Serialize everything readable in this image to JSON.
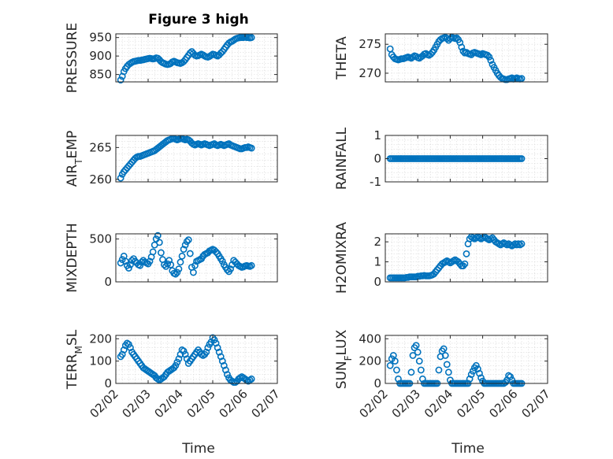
{
  "figure": {
    "title": "Figure 3 high",
    "xlabel": "Time",
    "date_ticks": [
      "02/02",
      "02/03",
      "02/04",
      "02/05",
      "02/06",
      "02/07"
    ]
  },
  "colors": {
    "marker": "#0072bd",
    "axis": "#262626"
  },
  "chart_data": [
    {
      "type": "scatter",
      "name": "pressure",
      "ylabel": "PRESSURE",
      "ylim": [
        830,
        960
      ],
      "yticks": [
        850,
        900,
        950
      ],
      "x": [
        2.15,
        2.2,
        2.25,
        2.3,
        2.35,
        2.4,
        2.45,
        2.5,
        2.55,
        2.6,
        2.65,
        2.7,
        2.75,
        2.8,
        2.85,
        2.9,
        2.95,
        3.0,
        3.05,
        3.1,
        3.15,
        3.2,
        3.25,
        3.3,
        3.35,
        3.4,
        3.45,
        3.5,
        3.55,
        3.6,
        3.65,
        3.7,
        3.75,
        3.8,
        3.85,
        3.9,
        3.95,
        4.0,
        4.05,
        4.1,
        4.15,
        4.2,
        4.25,
        4.3,
        4.35,
        4.4,
        4.45,
        4.5,
        4.55,
        4.6,
        4.65,
        4.7,
        4.75,
        4.8,
        4.85,
        4.9,
        4.95,
        5.0,
        5.05,
        5.1,
        5.15,
        5.2,
        5.25,
        5.3,
        5.35,
        5.4,
        5.45,
        5.5,
        5.55,
        5.6,
        5.65,
        5.7,
        5.75,
        5.8,
        5.85,
        5.9,
        5.95,
        6.0,
        6.05,
        6.1,
        6.15,
        6.2
      ],
      "y": [
        835,
        845,
        858,
        866,
        872,
        877,
        880,
        883,
        885,
        886,
        887,
        888,
        888,
        889,
        890,
        891,
        892,
        893,
        894,
        893,
        892,
        893,
        895,
        894,
        890,
        885,
        882,
        880,
        878,
        877,
        878,
        880,
        884,
        886,
        884,
        882,
        881,
        880,
        882,
        885,
        890,
        896,
        902,
        908,
        912,
        907,
        902,
        900,
        901,
        903,
        905,
        903,
        900,
        898,
        897,
        899,
        902,
        905,
        904,
        902,
        900,
        903,
        908,
        912,
        918,
        924,
        930,
        935,
        938,
        940,
        943,
        946,
        948,
        949,
        950,
        950,
        950,
        951,
        950,
        950,
        949,
        950
      ]
    },
    {
      "type": "scatter",
      "name": "theta",
      "ylabel": "THETA",
      "ylim": [
        268.5,
        276.8
      ],
      "yticks": [
        270,
        275
      ],
      "x": [
        2.15,
        2.2,
        2.25,
        2.3,
        2.35,
        2.4,
        2.45,
        2.5,
        2.55,
        2.6,
        2.65,
        2.7,
        2.75,
        2.8,
        2.85,
        2.9,
        2.95,
        3.0,
        3.05,
        3.1,
        3.15,
        3.2,
        3.25,
        3.3,
        3.35,
        3.4,
        3.45,
        3.5,
        3.55,
        3.6,
        3.65,
        3.7,
        3.75,
        3.8,
        3.85,
        3.9,
        3.95,
        4.0,
        4.05,
        4.1,
        4.15,
        4.2,
        4.25,
        4.3,
        4.35,
        4.4,
        4.45,
        4.5,
        4.55,
        4.6,
        4.65,
        4.7,
        4.75,
        4.8,
        4.85,
        4.9,
        4.95,
        5.0,
        5.05,
        5.1,
        5.15,
        5.2,
        5.25,
        5.3,
        5.35,
        5.4,
        5.45,
        5.5,
        5.55,
        5.6,
        5.65,
        5.7,
        5.75,
        5.8,
        5.85,
        5.9,
        5.95,
        6.0,
        6.05,
        6.1,
        6.15,
        6.2
      ],
      "y": [
        274.2,
        273.2,
        272.8,
        272.5,
        272.4,
        272.3,
        272.4,
        272.5,
        272.5,
        272.6,
        272.7,
        272.8,
        272.7,
        272.6,
        272.8,
        273.0,
        272.9,
        272.7,
        272.6,
        272.8,
        273.0,
        273.3,
        273.4,
        273.2,
        273.1,
        273.3,
        273.6,
        274.0,
        274.5,
        275.0,
        275.5,
        275.8,
        276.0,
        276.1,
        276.2,
        276.0,
        275.7,
        276.0,
        276.2,
        276.1,
        276.0,
        276.1,
        275.8,
        275.3,
        274.5,
        273.8,
        273.5,
        273.6,
        273.4,
        273.3,
        273.2,
        273.5,
        273.6,
        273.5,
        273.4,
        273.3,
        273.2,
        273.4,
        273.3,
        273.2,
        273.1,
        272.8,
        272.2,
        271.5,
        271.0,
        270.5,
        270.0,
        269.6,
        269.3,
        269.1,
        269.0,
        268.9,
        268.9,
        269.0,
        269.1,
        269.2,
        269.0,
        269.1,
        269.2,
        269.1,
        269.0,
        269.1
      ]
    },
    {
      "type": "scatter",
      "name": "air_temp",
      "ylabel_main": "AIR",
      "ylabel_sub": "T",
      "ylabel_rest": "EMP",
      "ylim": [
        259.6,
        266.9
      ],
      "yticks": [
        260,
        265
      ],
      "x": [
        2.15,
        2.2,
        2.25,
        2.3,
        2.35,
        2.4,
        2.45,
        2.5,
        2.55,
        2.6,
        2.65,
        2.7,
        2.75,
        2.8,
        2.85,
        2.9,
        2.95,
        3.0,
        3.05,
        3.1,
        3.15,
        3.2,
        3.25,
        3.3,
        3.35,
        3.4,
        3.45,
        3.5,
        3.55,
        3.6,
        3.65,
        3.7,
        3.75,
        3.8,
        3.85,
        3.9,
        3.95,
        4.0,
        4.05,
        4.1,
        4.15,
        4.2,
        4.25,
        4.3,
        4.35,
        4.4,
        4.45,
        4.5,
        4.55,
        4.6,
        4.65,
        4.7,
        4.75,
        4.8,
        4.85,
        4.9,
        4.95,
        5.0,
        5.05,
        5.1,
        5.15,
        5.2,
        5.25,
        5.3,
        5.35,
        5.4,
        5.45,
        5.5,
        5.55,
        5.6,
        5.65,
        5.7,
        5.75,
        5.8,
        5.85,
        5.9,
        5.95,
        6.0,
        6.05,
        6.1,
        6.15,
        6.2
      ],
      "y": [
        260.2,
        260.8,
        261.2,
        261.5,
        261.8,
        262.1,
        262.4,
        262.7,
        263.0,
        263.3,
        263.5,
        263.6,
        263.6,
        263.7,
        263.8,
        263.9,
        264.0,
        264.1,
        264.2,
        264.3,
        264.4,
        264.5,
        264.7,
        264.9,
        265.1,
        265.3,
        265.5,
        265.7,
        265.9,
        266.1,
        266.2,
        266.3,
        266.4,
        266.4,
        266.3,
        266.2,
        266.3,
        266.4,
        266.4,
        266.3,
        266.2,
        266.3,
        266.2,
        266.0,
        265.7,
        265.5,
        265.4,
        265.5,
        265.6,
        265.5,
        265.4,
        265.5,
        265.6,
        265.5,
        265.4,
        265.3,
        265.4,
        265.5,
        265.6,
        265.4,
        265.3,
        265.4,
        265.5,
        265.4,
        265.3,
        265.4,
        265.5,
        265.6,
        265.4,
        265.3,
        265.2,
        265.1,
        265.0,
        264.9,
        264.8,
        264.8,
        264.9,
        265.0,
        265.0,
        265.1,
        265.0,
        264.9
      ]
    },
    {
      "type": "scatter",
      "name": "rainfall",
      "ylabel": "RAINFALL",
      "ylim": [
        -1,
        1
      ],
      "yticks": [
        -1,
        0,
        1
      ],
      "x": [
        2.15,
        2.2,
        2.25,
        2.3,
        2.35,
        2.4,
        2.45,
        2.5,
        2.55,
        2.6,
        2.65,
        2.7,
        2.75,
        2.8,
        2.85,
        2.9,
        2.95,
        3.0,
        3.05,
        3.1,
        3.15,
        3.2,
        3.25,
        3.3,
        3.35,
        3.4,
        3.45,
        3.5,
        3.55,
        3.6,
        3.65,
        3.7,
        3.75,
        3.8,
        3.85,
        3.9,
        3.95,
        4.0,
        4.05,
        4.1,
        4.15,
        4.2,
        4.25,
        4.3,
        4.35,
        4.4,
        4.45,
        4.5,
        4.55,
        4.6,
        4.65,
        4.7,
        4.75,
        4.8,
        4.85,
        4.9,
        4.95,
        5.0,
        5.05,
        5.1,
        5.15,
        5.2,
        5.25,
        5.3,
        5.35,
        5.4,
        5.45,
        5.5,
        5.55,
        5.6,
        5.65,
        5.7,
        5.75,
        5.8,
        5.85,
        5.9,
        5.95,
        6.0,
        6.05,
        6.1,
        6.15,
        6.2
      ],
      "y": [
        0,
        0,
        0,
        0,
        0,
        0,
        0,
        0,
        0,
        0,
        0,
        0,
        0,
        0,
        0,
        0,
        0,
        0,
        0,
        0,
        0,
        0,
        0,
        0,
        0,
        0,
        0,
        0,
        0,
        0,
        0,
        0,
        0,
        0,
        0,
        0,
        0,
        0,
        0,
        0,
        0,
        0,
        0,
        0,
        0,
        0,
        0,
        0,
        0,
        0,
        0,
        0,
        0,
        0,
        0,
        0,
        0,
        0,
        0,
        0,
        0,
        0,
        0,
        0,
        0,
        0,
        0,
        0,
        0,
        0,
        0,
        0,
        0,
        0,
        0,
        0,
        0,
        0,
        0,
        0,
        0,
        0
      ]
    },
    {
      "type": "scatter",
      "name": "mixdepth",
      "ylabel": "MIXDEPTH",
      "ylim": [
        0,
        560
      ],
      "yticks": [
        0,
        500
      ],
      "x": [
        2.15,
        2.2,
        2.25,
        2.3,
        2.35,
        2.4,
        2.45,
        2.5,
        2.55,
        2.6,
        2.65,
        2.7,
        2.75,
        2.8,
        2.85,
        2.9,
        2.95,
        3.0,
        3.05,
        3.1,
        3.15,
        3.2,
        3.25,
        3.3,
        3.35,
        3.4,
        3.45,
        3.5,
        3.55,
        3.6,
        3.65,
        3.7,
        3.75,
        3.8,
        3.85,
        3.9,
        3.95,
        4.0,
        4.05,
        4.1,
        4.15,
        4.2,
        4.25,
        4.3,
        4.35,
        4.4,
        4.45,
        4.5,
        4.55,
        4.6,
        4.65,
        4.7,
        4.75,
        4.8,
        4.85,
        4.9,
        4.95,
        5.0,
        5.05,
        5.1,
        5.15,
        5.2,
        5.25,
        5.3,
        5.35,
        5.4,
        5.45,
        5.5,
        5.55,
        5.6,
        5.65,
        5.7,
        5.75,
        5.8,
        5.85,
        5.9,
        5.95,
        6.0,
        6.05,
        6.1,
        6.15,
        6.2
      ],
      "y": [
        220,
        260,
        300,
        240,
        190,
        160,
        200,
        250,
        270,
        240,
        220,
        200,
        190,
        230,
        250,
        230,
        220,
        210,
        240,
        290,
        350,
        430,
        500,
        540,
        460,
        340,
        260,
        200,
        180,
        210,
        250,
        200,
        130,
        100,
        90,
        110,
        150,
        230,
        300,
        380,
        430,
        470,
        490,
        330,
        170,
        110,
        190,
        240,
        250,
        260,
        270,
        300,
        320,
        330,
        340,
        360,
        370,
        380,
        370,
        350,
        330,
        300,
        270,
        240,
        200,
        170,
        140,
        120,
        150,
        200,
        250,
        230,
        210,
        190,
        180,
        170,
        175,
        185,
        190,
        185,
        180,
        190
      ]
    },
    {
      "type": "scatter",
      "name": "h2omixra",
      "ylabel": "H2OMIXRA",
      "ylim": [
        0,
        2.4
      ],
      "yticks": [
        0,
        1,
        2
      ],
      "x": [
        2.15,
        2.2,
        2.25,
        2.3,
        2.35,
        2.4,
        2.45,
        2.5,
        2.55,
        2.6,
        2.65,
        2.7,
        2.75,
        2.8,
        2.85,
        2.9,
        2.95,
        3.0,
        3.05,
        3.1,
        3.15,
        3.2,
        3.25,
        3.3,
        3.35,
        3.4,
        3.45,
        3.5,
        3.55,
        3.6,
        3.65,
        3.7,
        3.75,
        3.8,
        3.85,
        3.9,
        3.95,
        4.0,
        4.05,
        4.1,
        4.15,
        4.2,
        4.25,
        4.3,
        4.35,
        4.4,
        4.45,
        4.5,
        4.55,
        4.6,
        4.65,
        4.7,
        4.75,
        4.8,
        4.85,
        4.9,
        4.95,
        5.0,
        5.05,
        5.1,
        5.15,
        5.2,
        5.25,
        5.3,
        5.35,
        5.4,
        5.45,
        5.5,
        5.55,
        5.6,
        5.65,
        5.7,
        5.75,
        5.8,
        5.85,
        5.9,
        5.95,
        6.0,
        6.05,
        6.1,
        6.15,
        6.2
      ],
      "y": [
        0.2,
        0.2,
        0.2,
        0.2,
        0.2,
        0.2,
        0.2,
        0.2,
        0.2,
        0.2,
        0.22,
        0.22,
        0.25,
        0.25,
        0.25,
        0.25,
        0.25,
        0.28,
        0.28,
        0.3,
        0.3,
        0.32,
        0.3,
        0.3,
        0.3,
        0.32,
        0.35,
        0.4,
        0.5,
        0.6,
        0.7,
        0.8,
        0.9,
        0.95,
        1.0,
        1.05,
        1.0,
        0.95,
        1.0,
        1.05,
        1.1,
        1.05,
        1.0,
        0.9,
        0.8,
        0.8,
        0.9,
        1.4,
        1.9,
        2.15,
        2.25,
        2.2,
        2.15,
        2.2,
        2.25,
        2.2,
        2.15,
        2.2,
        2.25,
        2.2,
        2.15,
        2.1,
        2.15,
        2.2,
        2.1,
        2.0,
        1.95,
        1.9,
        1.85,
        1.9,
        1.95,
        1.9,
        1.85,
        1.9,
        1.85,
        1.8,
        1.85,
        1.9,
        1.85,
        1.9,
        1.85,
        1.9
      ]
    },
    {
      "type": "scatter",
      "name": "terr_msl",
      "ylabel_main": "TERR",
      "ylabel_sub": "M",
      "ylabel_rest": "SL",
      "ylim": [
        0,
        215
      ],
      "yticks": [
        0,
        100,
        200
      ],
      "x": [
        2.15,
        2.2,
        2.25,
        2.3,
        2.35,
        2.4,
        2.45,
        2.5,
        2.55,
        2.6,
        2.65,
        2.7,
        2.75,
        2.8,
        2.85,
        2.9,
        2.95,
        3.0,
        3.05,
        3.1,
        3.15,
        3.2,
        3.25,
        3.3,
        3.35,
        3.4,
        3.45,
        3.5,
        3.55,
        3.6,
        3.65,
        3.7,
        3.75,
        3.8,
        3.85,
        3.9,
        3.95,
        4.0,
        4.05,
        4.1,
        4.15,
        4.2,
        4.25,
        4.3,
        4.35,
        4.4,
        4.45,
        4.5,
        4.55,
        4.6,
        4.65,
        4.7,
        4.75,
        4.8,
        4.85,
        4.9,
        4.95,
        5.0,
        5.05,
        5.1,
        5.15,
        5.2,
        5.25,
        5.3,
        5.35,
        5.4,
        5.45,
        5.5,
        5.55,
        5.6,
        5.65,
        5.7,
        5.75,
        5.8,
        5.85,
        5.9,
        5.95,
        6.0,
        6.05,
        6.1,
        6.15,
        6.2
      ],
      "y": [
        120,
        130,
        150,
        170,
        180,
        175,
        160,
        140,
        130,
        120,
        110,
        100,
        90,
        80,
        70,
        65,
        60,
        55,
        50,
        45,
        40,
        35,
        25,
        20,
        15,
        20,
        25,
        30,
        40,
        50,
        55,
        60,
        65,
        70,
        80,
        95,
        110,
        130,
        150,
        145,
        130,
        110,
        90,
        100,
        110,
        120,
        130,
        140,
        150,
        140,
        130,
        125,
        130,
        140,
        160,
        175,
        185,
        205,
        195,
        180,
        160,
        140,
        120,
        100,
        80,
        60,
        40,
        25,
        15,
        10,
        5,
        5,
        10,
        20,
        25,
        30,
        25,
        20,
        15,
        10,
        15,
        20
      ]
    },
    {
      "type": "scatter",
      "name": "sun_flux",
      "ylabel_main": "SUN",
      "ylabel_sub": "F",
      "ylabel_rest": "LUX",
      "ylim": [
        0,
        430
      ],
      "yticks": [
        0,
        200,
        400
      ],
      "x": [
        2.15,
        2.2,
        2.25,
        2.3,
        2.35,
        2.4,
        2.45,
        2.5,
        2.55,
        2.6,
        2.65,
        2.7,
        2.75,
        2.8,
        2.85,
        2.9,
        2.95,
        3.0,
        3.05,
        3.1,
        3.15,
        3.2,
        3.25,
        3.3,
        3.35,
        3.4,
        3.45,
        3.5,
        3.55,
        3.6,
        3.65,
        3.7,
        3.75,
        3.8,
        3.85,
        3.9,
        3.95,
        4.0,
        4.05,
        4.1,
        4.15,
        4.2,
        4.25,
        4.3,
        4.35,
        4.4,
        4.45,
        4.5,
        4.55,
        4.6,
        4.65,
        4.7,
        4.75,
        4.8,
        4.85,
        4.9,
        4.95,
        5.0,
        5.05,
        5.1,
        5.15,
        5.2,
        5.25,
        5.3,
        5.35,
        5.4,
        5.45,
        5.5,
        5.55,
        5.6,
        5.65,
        5.7,
        5.75,
        5.8,
        5.85,
        5.9,
        5.95,
        6.0,
        6.05,
        6.1,
        6.15,
        6.2
      ],
      "y": [
        160,
        220,
        250,
        200,
        120,
        40,
        0,
        0,
        0,
        0,
        0,
        0,
        0,
        100,
        250,
        320,
        340,
        280,
        200,
        120,
        40,
        0,
        0,
        0,
        0,
        0,
        0,
        0,
        0,
        0,
        120,
        240,
        290,
        310,
        250,
        170,
        100,
        30,
        0,
        0,
        0,
        0,
        0,
        0,
        0,
        0,
        0,
        0,
        0,
        40,
        80,
        110,
        140,
        160,
        130,
        90,
        50,
        20,
        0,
        0,
        0,
        0,
        0,
        0,
        0,
        0,
        0,
        0,
        0,
        0,
        0,
        10,
        30,
        70,
        60,
        30,
        0,
        0,
        0,
        0,
        0,
        0
      ]
    }
  ]
}
